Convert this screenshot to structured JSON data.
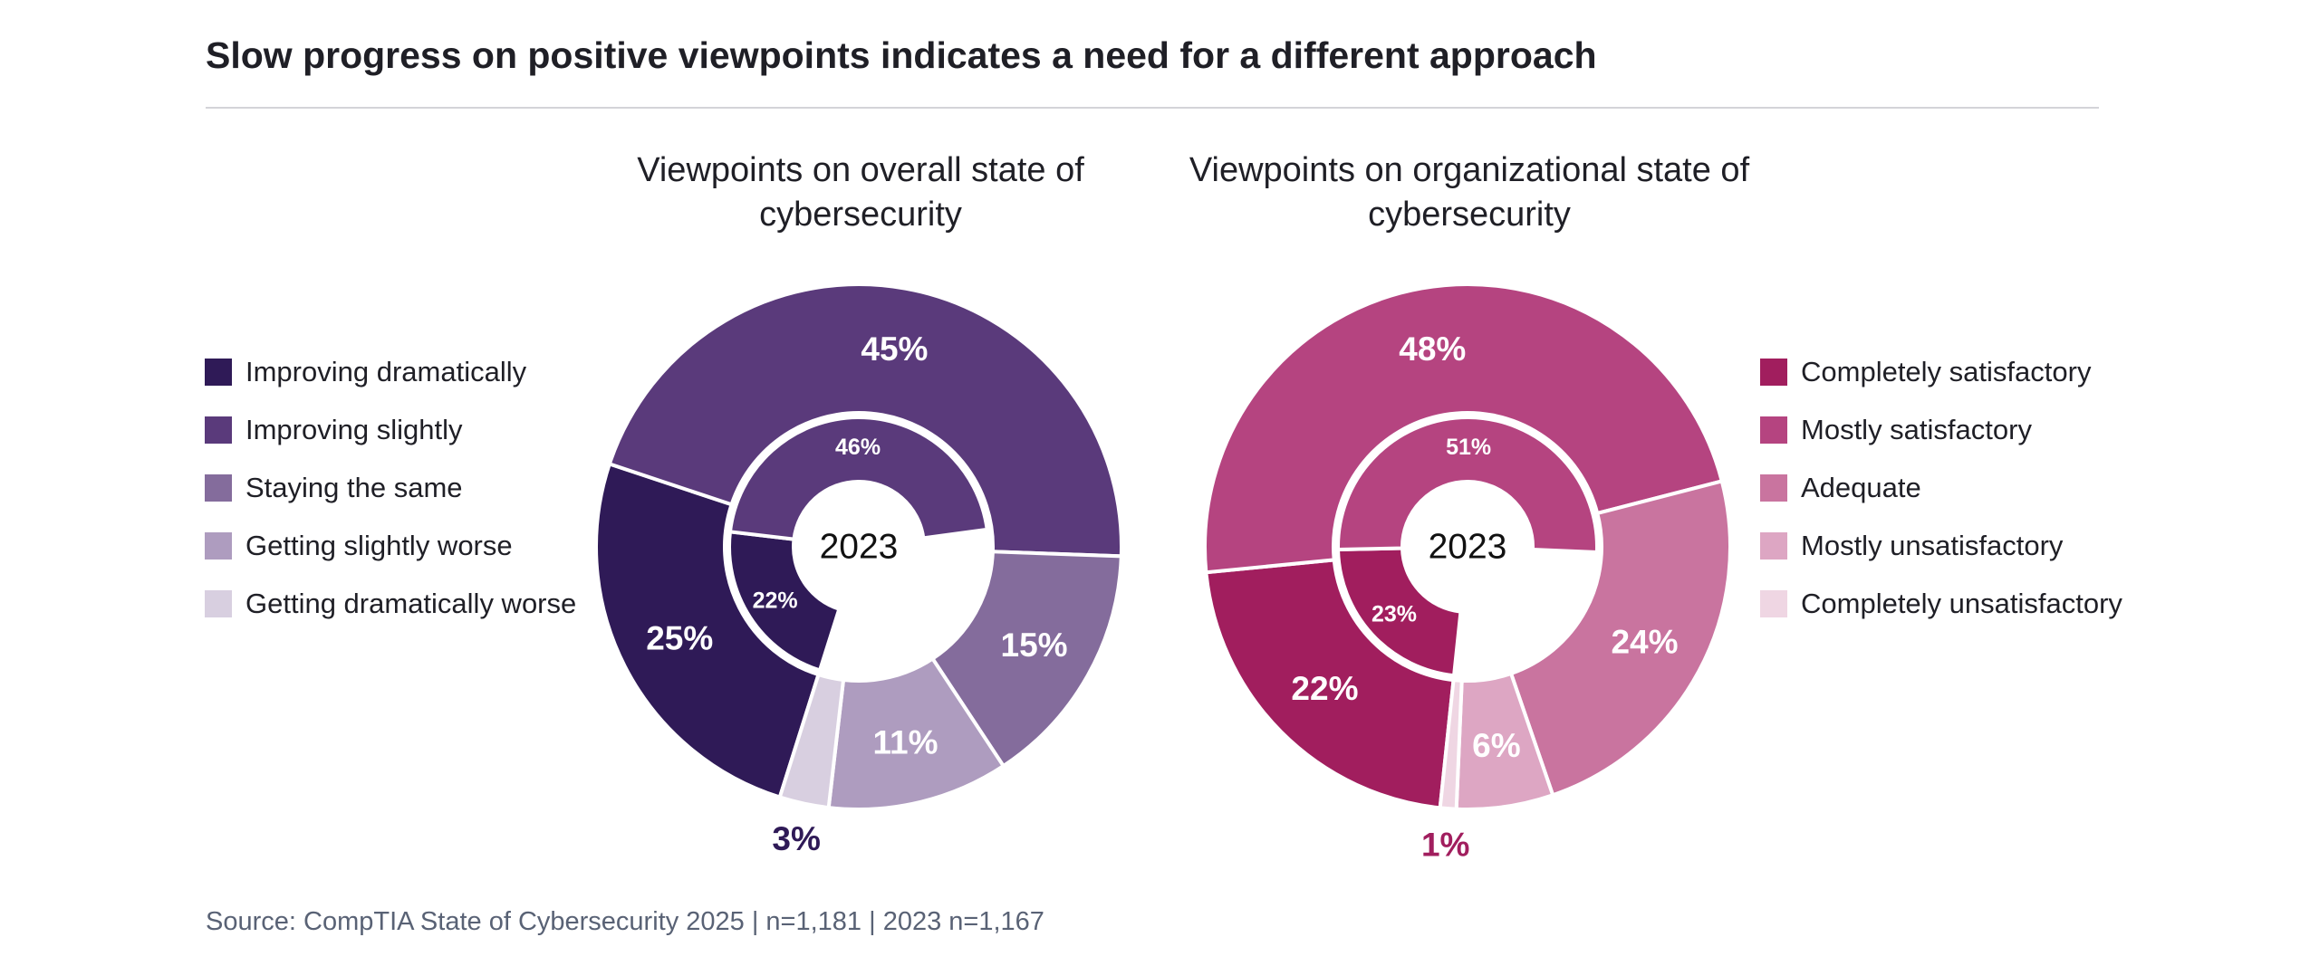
{
  "title": "Slow progress on positive viewpoints indicates a need for a different approach",
  "source": "Source: CompTIA State of Cybersecurity 2025 | n=1,181 | 2023 n=1,167",
  "chart_data": [
    {
      "type": "pie",
      "subtype": "nested-donut",
      "title": "Viewpoints on overall state of cybersecurity",
      "center_label": "2023",
      "categories": [
        "Improving dramatically",
        "Improving slightly",
        "Staying the same",
        "Getting slightly worse",
        "Getting dramatically worse"
      ],
      "colors": [
        "#2f1a57",
        "#5a3a7b",
        "#846c9c",
        "#ae9cbf",
        "#d8cfe0"
      ],
      "outer": {
        "name": "2025",
        "values": [
          25,
          45,
          15,
          11,
          3
        ],
        "labels": [
          "25%",
          "45%",
          "15%",
          "11%",
          "3%"
        ]
      },
      "inner": {
        "name": "2023",
        "values": [
          22,
          46
        ],
        "labels": [
          "22%",
          "46%"
        ]
      },
      "legend_position": "left"
    },
    {
      "type": "pie",
      "subtype": "nested-donut",
      "title": "Viewpoints on organizational state of cybersecurity",
      "center_label": "2023",
      "categories": [
        "Completely satisfactory",
        "Mostly satisfactory",
        "Adequate",
        "Mostly unsatisfactory",
        "Completely unsatisfactory"
      ],
      "colors": [
        "#a11e5e",
        "#b54480",
        "#c9749f",
        "#dda6c3",
        "#efd6e3"
      ],
      "outer": {
        "name": "2025",
        "values": [
          22,
          48,
          24,
          6,
          1
        ],
        "labels": [
          "22%",
          "48%",
          "24%",
          "6%",
          "1%"
        ]
      },
      "inner": {
        "name": "2023",
        "values": [
          23,
          51
        ],
        "labels": [
          "23%",
          "51%"
        ]
      },
      "legend_position": "right"
    }
  ]
}
